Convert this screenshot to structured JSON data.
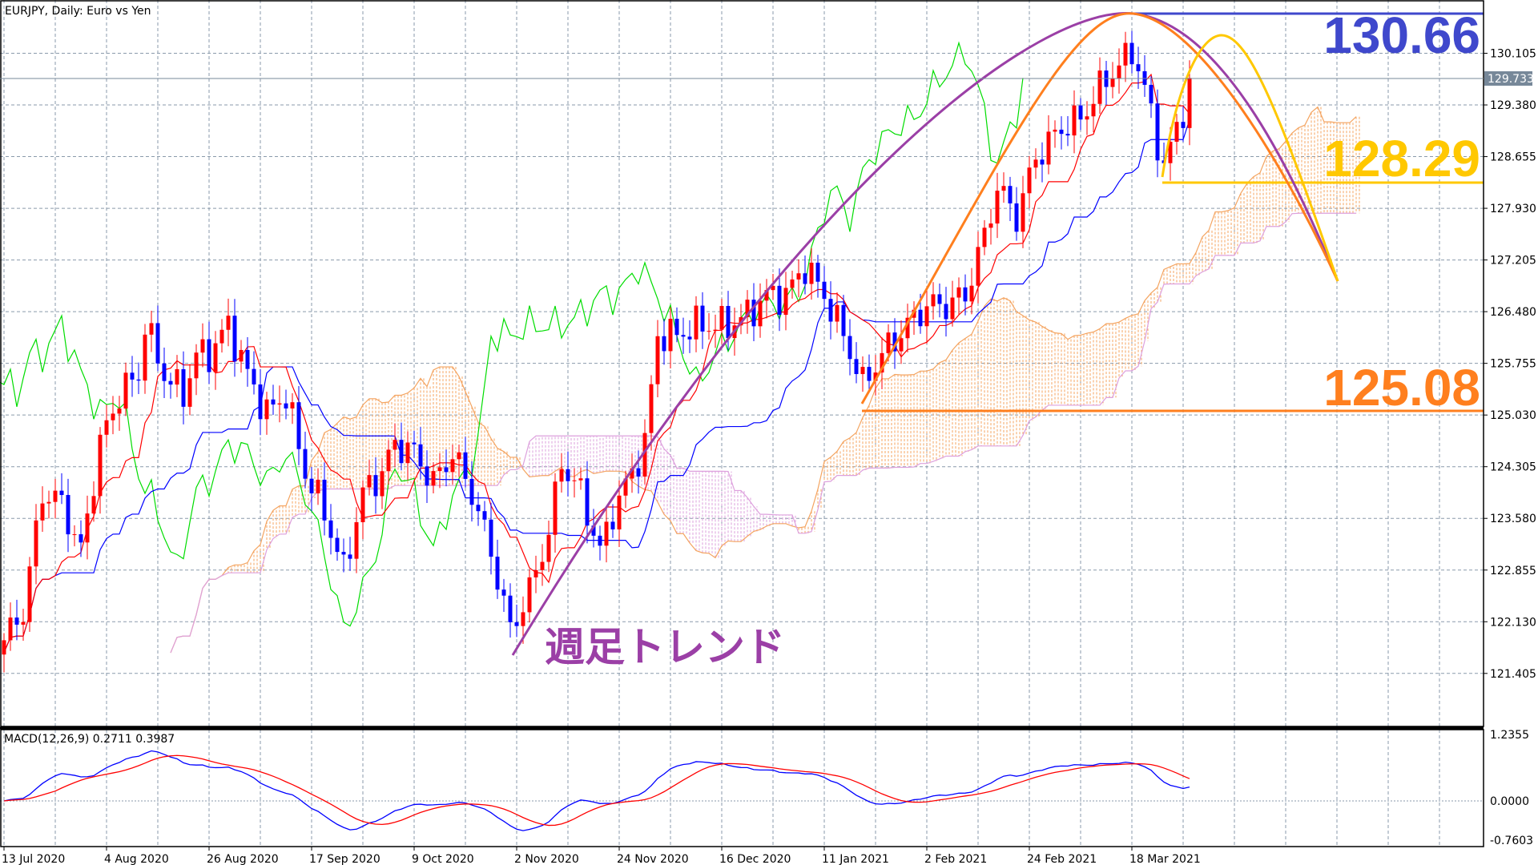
{
  "header": {
    "title": "EURJPY, Daily:  Euro vs Yen"
  },
  "macd": {
    "label": "MACD(12,26,9) 0.2711 0.3987"
  },
  "annotations": {
    "trend_label": "週足トレンド",
    "level_high": "130.66",
    "level_mid": "128.29",
    "level_low": "125.08"
  },
  "current_price": "129.733",
  "colors": {
    "up": "#ff0000",
    "down": "#0000ff",
    "tenkan": "#ff0000",
    "kijun": "#0000ff",
    "chikou": "#00dd00",
    "cloud_up": "#f4a460",
    "cloud_down": "#dda0dd",
    "purple": "#9b3fa6",
    "orange": "#ff7f1e",
    "yellow": "#ffc800",
    "blue": "#3f48cc"
  },
  "chart_data": {
    "type": "candlestick",
    "symbol": "EURJPY",
    "timeframe": "Daily",
    "y_ticks": [
      "130.105",
      "129.380",
      "128.655",
      "127.930",
      "127.205",
      "126.480",
      "125.755",
      "125.030",
      "124.305",
      "123.580",
      "122.855",
      "122.130",
      "121.405"
    ],
    "macd_ticks": [
      "1.2355",
      "0.0000",
      "-0.7603"
    ],
    "x_labels": [
      "13 Jul 2020",
      "4 Aug 2020",
      "26 Aug 2020",
      "17 Sep 2020",
      "9 Oct 2020",
      "2 Nov 2020",
      "24 Nov 2020",
      "16 Dec 2020",
      "11 Jan 2021",
      "2 Feb 2021",
      "24 Feb 2021",
      "18 Mar 2021"
    ],
    "x_label_step_bars": 16,
    "close_keypoints": [
      [
        0,
        121.87
      ],
      [
        3,
        122.28
      ],
      [
        6,
        123.94
      ],
      [
        9,
        123.8
      ],
      [
        12,
        123.11
      ],
      [
        15,
        124.63
      ],
      [
        18,
        125.32
      ],
      [
        21,
        125.6
      ],
      [
        22,
        126.29
      ],
      [
        25,
        125.6
      ],
      [
        28,
        125.32
      ],
      [
        30,
        125.88
      ],
      [
        32,
        125.88
      ],
      [
        35,
        126.29
      ],
      [
        38,
        125.6
      ],
      [
        41,
        125.05
      ],
      [
        44,
        125.32
      ],
      [
        47,
        124.22
      ],
      [
        50,
        123.67
      ],
      [
        53,
        122.84
      ],
      [
        56,
        123.94
      ],
      [
        59,
        124.22
      ],
      [
        61,
        124.63
      ],
      [
        64,
        124.5
      ],
      [
        67,
        124.08
      ],
      [
        70,
        124.5
      ],
      [
        73,
        123.94
      ],
      [
        76,
        123.11
      ],
      [
        79,
        122.01
      ],
      [
        82,
        122.56
      ],
      [
        85,
        123.39
      ],
      [
        87,
        124.36
      ],
      [
        90,
        123.94
      ],
      [
        93,
        123.11
      ],
      [
        95,
        123.67
      ],
      [
        98,
        124.22
      ],
      [
        100,
        124.63
      ],
      [
        102,
        126.15
      ],
      [
        105,
        126.15
      ],
      [
        108,
        126.29
      ],
      [
        113,
        126.29
      ],
      [
        116,
        126.43
      ],
      [
        119,
        126.71
      ],
      [
        122,
        126.71
      ],
      [
        125,
        127.12
      ],
      [
        128,
        126.71
      ],
      [
        131,
        126.15
      ],
      [
        134,
        125.46
      ],
      [
        137,
        125.88
      ],
      [
        141,
        126.29
      ],
      [
        144,
        126.57
      ],
      [
        147,
        126.57
      ],
      [
        150,
        126.71
      ],
      [
        153,
        127.54
      ],
      [
        155,
        128.23
      ],
      [
        158,
        127.81
      ],
      [
        161,
        128.64
      ],
      [
        165,
        129.06
      ],
      [
        168,
        129.19
      ],
      [
        172,
        129.75
      ],
      [
        175,
        130.02
      ],
      [
        176,
        130.16
      ],
      [
        178,
        129.6
      ],
      [
        181,
        128.5
      ],
      [
        183,
        129.06
      ],
      [
        185,
        129.6
      ]
    ]
  }
}
